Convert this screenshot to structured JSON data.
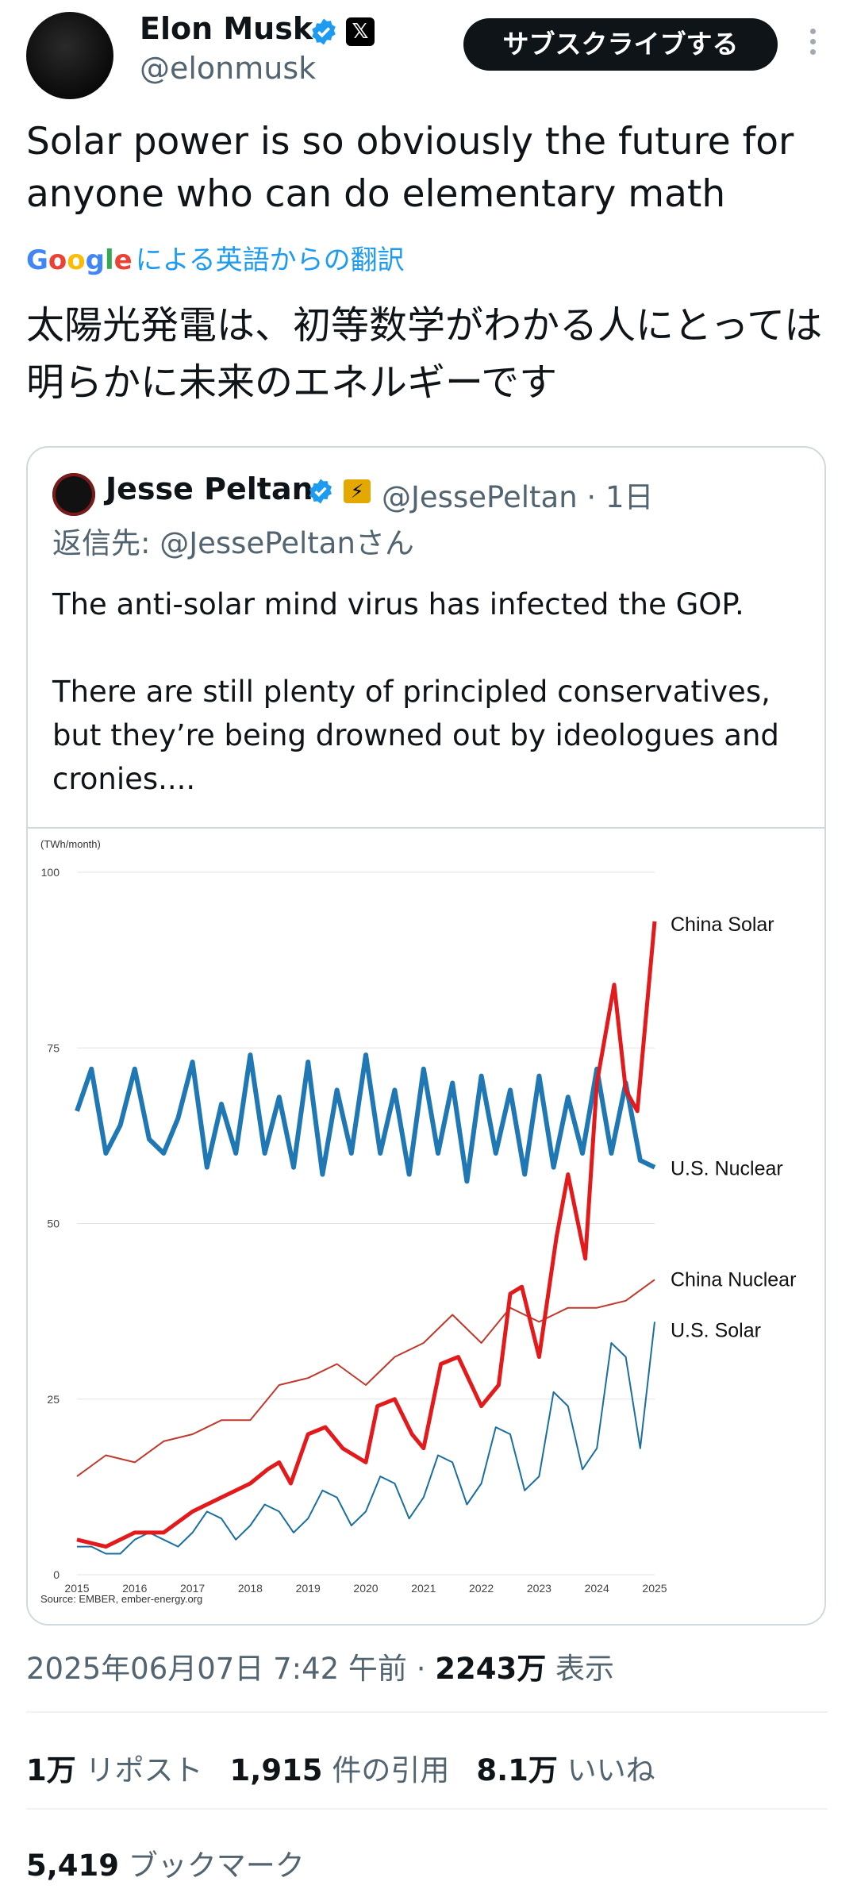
{
  "author": {
    "name": "Elon Musk",
    "handle": "@elonmusk",
    "subscribe_label": "サブスクライブする",
    "badge_x": "𝕏"
  },
  "tweet": {
    "text": "Solar power is so obviously the future for anyone who can do elementary math",
    "translate_label": "による英語からの翻訳",
    "google_letters": [
      "G",
      "o",
      "o",
      "g",
      "l",
      "e"
    ],
    "google_colors": [
      "#4285f4",
      "#ea4335",
      "#fbbc05",
      "#4285f4",
      "#34a853",
      "#ea4335"
    ],
    "translated_text": "太陽光発電は、初等数学がわかる人にとっては明らかに未来のエネルギーです"
  },
  "quote": {
    "name": "Jesse Peltan",
    "affiliation_badge": "⚡",
    "handle_time": "@JessePeltan · 1日",
    "reply_prefix": "返信先: ",
    "reply_handle": "@JessePeltanさん",
    "text": "The anti-solar mind virus has infected the GOP.\n\nThere are still plenty of principled conservatives, but they’re being drowned out by ideologues and cronies...."
  },
  "chart_data": {
    "type": "line",
    "unit_label": "(TWh/month)",
    "y_ticks": [
      "0",
      "25",
      "50",
      "75",
      "100"
    ],
    "ylim": [
      0,
      100
    ],
    "x_ticks": [
      "2015",
      "2016",
      "2017",
      "2018",
      "2019",
      "2020",
      "2021",
      "2022",
      "2023",
      "2024",
      "2025"
    ],
    "source": "Source: EMBER, ember-energy.org",
    "series": [
      {
        "name": "China Solar",
        "color": "#e31a1c",
        "width": 5,
        "x": [
          2015,
          2015.5,
          2016,
          2016.5,
          2017,
          2017.5,
          2018,
          2018.3,
          2018.5,
          2018.7,
          2019,
          2019.3,
          2019.6,
          2020,
          2020.2,
          2020.5,
          2020.8,
          2021,
          2021.3,
          2021.6,
          2022,
          2022.3,
          2022.5,
          2022.7,
          2023,
          2023.3,
          2023.5,
          2023.8,
          2024,
          2024.3,
          2024.5,
          2024.7,
          2025
        ],
        "y": [
          5,
          4,
          6,
          6,
          9,
          11,
          13,
          15,
          16,
          13,
          20,
          21,
          18,
          16,
          24,
          25,
          20,
          18,
          30,
          31,
          24,
          27,
          40,
          41,
          31,
          48,
          57,
          45,
          70,
          84,
          69,
          66,
          93
        ]
      },
      {
        "name": "U.S. Nuclear",
        "color": "#1f78b4",
        "width": 6,
        "x": [
          2015,
          2015.25,
          2015.5,
          2015.75,
          2016,
          2016.25,
          2016.5,
          2016.75,
          2017,
          2017.25,
          2017.5,
          2017.75,
          2018,
          2018.25,
          2018.5,
          2018.75,
          2019,
          2019.25,
          2019.5,
          2019.75,
          2020,
          2020.25,
          2020.5,
          2020.75,
          2021,
          2021.25,
          2021.5,
          2021.75,
          2022,
          2022.25,
          2022.5,
          2022.75,
          2023,
          2023.25,
          2023.5,
          2023.75,
          2024,
          2024.25,
          2024.5,
          2024.75,
          2025
        ],
        "y": [
          66,
          72,
          60,
          64,
          72,
          62,
          60,
          65,
          73,
          58,
          67,
          60,
          74,
          60,
          68,
          58,
          73,
          57,
          69,
          60,
          74,
          60,
          69,
          57,
          72,
          60,
          70,
          56,
          71,
          60,
          69,
          57,
          71,
          58,
          68,
          60,
          72,
          60,
          70,
          59,
          58
        ]
      },
      {
        "name": "China Nuclear",
        "color": "#c0392b",
        "width": 2,
        "x": [
          2015,
          2015.5,
          2016,
          2016.5,
          2017,
          2017.5,
          2018,
          2018.5,
          2019,
          2019.5,
          2020,
          2020.5,
          2021,
          2021.5,
          2022,
          2022.5,
          2023,
          2023.5,
          2024,
          2024.5,
          2025
        ],
        "y": [
          14,
          17,
          16,
          19,
          20,
          22,
          22,
          27,
          28,
          30,
          27,
          31,
          33,
          37,
          33,
          38,
          36,
          38,
          38,
          39,
          42
        ]
      },
      {
        "name": "U.S. Solar",
        "color": "#1a6fa0",
        "width": 2,
        "x": [
          2015,
          2015.25,
          2015.5,
          2015.75,
          2016,
          2016.25,
          2016.5,
          2016.75,
          2017,
          2017.25,
          2017.5,
          2017.75,
          2018,
          2018.25,
          2018.5,
          2018.75,
          2019,
          2019.25,
          2019.5,
          2019.75,
          2020,
          2020.25,
          2020.5,
          2020.75,
          2021,
          2021.25,
          2021.5,
          2021.75,
          2022,
          2022.25,
          2022.5,
          2022.75,
          2023,
          2023.25,
          2023.5,
          2023.75,
          2024,
          2024.25,
          2024.5,
          2024.75,
          2025
        ],
        "y": [
          4,
          4,
          3,
          3,
          5,
          6,
          5,
          4,
          6,
          9,
          8,
          5,
          7,
          10,
          9,
          6,
          8,
          12,
          11,
          7,
          9,
          14,
          13,
          8,
          11,
          17,
          16,
          10,
          13,
          21,
          20,
          12,
          14,
          26,
          24,
          15,
          18,
          33,
          31,
          18,
          36
        ]
      }
    ]
  },
  "footer": {
    "timestamp": "2025年06月07日 7:42 午前 · ",
    "views_count": "2243万",
    "views_label": " 表示",
    "reposts_count": "1万",
    "reposts_label": " リポスト",
    "quotes_count": "1,915",
    "quotes_label": " 件の引用",
    "likes_count": "8.1万",
    "likes_label": " いいね",
    "bookmarks_count": "5,419",
    "bookmarks_label": " ブックマーク"
  }
}
